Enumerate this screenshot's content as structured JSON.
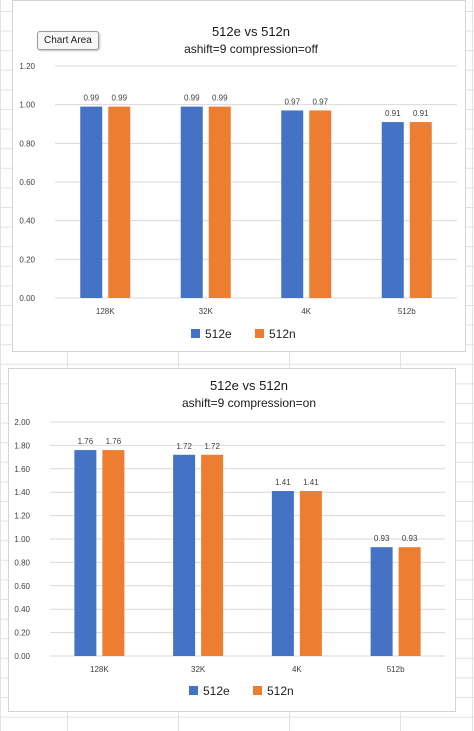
{
  "tooltip": "Chart Area",
  "colors": {
    "series_1": "#4472c4",
    "series_2": "#ed7d31",
    "gridline": "#d9d9d9",
    "axis_text": "#404040",
    "title_text": "#1a1a1a",
    "sheet_gridline": "#e2e2e2"
  },
  "chart_data": [
    {
      "type": "bar",
      "title": "512e vs 512n",
      "subtitle": "ashift=9 compression=off",
      "categories": [
        "128K",
        "32K",
        "4K",
        "512b"
      ],
      "series": [
        {
          "name": "512e",
          "values": [
            0.99,
            0.99,
            0.97,
            0.91
          ]
        },
        {
          "name": "512n",
          "values": [
            0.99,
            0.99,
            0.97,
            0.91
          ]
        }
      ],
      "data_labels": [
        [
          "0.99",
          "0.99",
          "0.97",
          "0.91"
        ],
        [
          "0.99",
          "0.99",
          "0.97",
          "0.91"
        ]
      ],
      "ylim": [
        0,
        1.2
      ],
      "yticks": [
        "0.00",
        "0.20",
        "0.40",
        "0.60",
        "0.80",
        "1.00",
        "1.20"
      ],
      "grid": true,
      "legend": "bottom"
    },
    {
      "type": "bar",
      "title": "512e vs 512n",
      "subtitle": "ashift=9 compression=on",
      "categories": [
        "128K",
        "32K",
        "4K",
        "512b"
      ],
      "series": [
        {
          "name": "512e",
          "values": [
            1.76,
            1.72,
            1.41,
            0.93
          ]
        },
        {
          "name": "512n",
          "values": [
            1.76,
            1.72,
            1.41,
            0.93
          ]
        }
      ],
      "data_labels": [
        [
          "1.76",
          "1.72",
          "1.41",
          "0.93"
        ],
        [
          "1.76",
          "1.72",
          "1.41",
          "0.93"
        ]
      ],
      "ylim": [
        0,
        2.0
      ],
      "yticks": [
        "0.00",
        "0.20",
        "0.40",
        "0.60",
        "0.80",
        "1.00",
        "1.20",
        "1.40",
        "1.60",
        "1.80",
        "2.00"
      ],
      "grid": true,
      "legend": "bottom"
    }
  ]
}
